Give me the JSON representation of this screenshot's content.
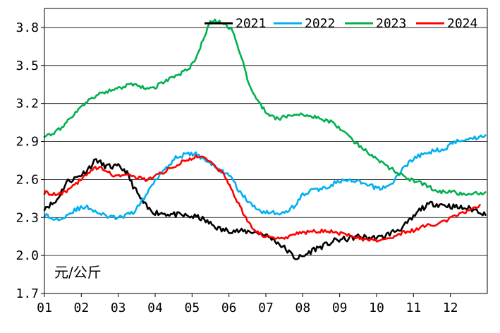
{
  "chart_data": {
    "type": "line",
    "title": "",
    "xlabel": "",
    "ylabel": "元/公斤",
    "ylim": [
      1.7,
      3.95
    ],
    "xlim": [
      1,
      13
    ],
    "grid": "horizontal",
    "legend_position": "top-right",
    "x_ticks": [
      {
        "label": "01",
        "value": 1
      },
      {
        "label": "02",
        "value": 2
      },
      {
        "label": "03",
        "value": 3
      },
      {
        "label": "04",
        "value": 4
      },
      {
        "label": "05",
        "value": 5
      },
      {
        "label": "06",
        "value": 6
      },
      {
        "label": "07",
        "value": 7
      },
      {
        "label": "08",
        "value": 8
      },
      {
        "label": "09",
        "value": 9
      },
      {
        "label": "10",
        "value": 10
      },
      {
        "label": "11",
        "value": 11
      },
      {
        "label": "12",
        "value": 12
      }
    ],
    "y_ticks": [
      {
        "label": "1.7",
        "value": 1.7
      },
      {
        "label": "2.0",
        "value": 2.0
      },
      {
        "label": "2.3",
        "value": 2.3
      },
      {
        "label": "2.6",
        "value": 2.6
      },
      {
        "label": "2.9",
        "value": 2.9
      },
      {
        "label": "3.2",
        "value": 3.2
      },
      {
        "label": "3.5",
        "value": 3.5
      },
      {
        "label": "3.8",
        "value": 3.8
      }
    ],
    "series": [
      {
        "name": "2021",
        "color": "#000000",
        "x": [
          1.0,
          1.3,
          1.6,
          1.9,
          2.1,
          2.3,
          2.4,
          2.6,
          2.8,
          3.0,
          3.2,
          3.4,
          3.6,
          3.8,
          4.0,
          4.3,
          4.6,
          4.9,
          5.2,
          5.5,
          5.8,
          6.0,
          6.3,
          6.6,
          6.9,
          7.2,
          7.5,
          7.8,
          8.0,
          8.3,
          8.6,
          8.9,
          9.2,
          9.5,
          9.8,
          10.1,
          10.4,
          10.7,
          11.0,
          11.2,
          11.5,
          11.8,
          12.0,
          12.2,
          12.5,
          12.8,
          12.95
        ],
        "y": [
          2.38,
          2.42,
          2.58,
          2.62,
          2.66,
          2.72,
          2.76,
          2.71,
          2.7,
          2.7,
          2.67,
          2.55,
          2.45,
          2.37,
          2.34,
          2.33,
          2.32,
          2.31,
          2.3,
          2.25,
          2.2,
          2.2,
          2.19,
          2.19,
          2.17,
          2.13,
          2.06,
          1.98,
          1.99,
          2.05,
          2.08,
          2.12,
          2.13,
          2.15,
          2.14,
          2.14,
          2.18,
          2.22,
          2.3,
          2.37,
          2.41,
          2.4,
          2.39,
          2.38,
          2.37,
          2.35,
          2.32
        ]
      },
      {
        "name": "2022",
        "color": "#00b0f0",
        "x": [
          1.0,
          1.3,
          1.6,
          1.9,
          2.2,
          2.5,
          2.8,
          3.1,
          3.4,
          3.7,
          4.0,
          4.3,
          4.6,
          4.9,
          5.1,
          5.4,
          5.7,
          6.0,
          6.3,
          6.6,
          6.9,
          7.2,
          7.5,
          7.8,
          8.0,
          8.3,
          8.6,
          8.9,
          9.2,
          9.5,
          9.8,
          10.1,
          10.4,
          10.7,
          11.0,
          11.3,
          11.6,
          11.9,
          12.1,
          12.4,
          12.7,
          12.95
        ],
        "y": [
          2.32,
          2.28,
          2.32,
          2.37,
          2.38,
          2.33,
          2.3,
          2.3,
          2.34,
          2.45,
          2.6,
          2.7,
          2.78,
          2.8,
          2.8,
          2.75,
          2.68,
          2.64,
          2.5,
          2.4,
          2.35,
          2.34,
          2.33,
          2.4,
          2.48,
          2.52,
          2.53,
          2.58,
          2.59,
          2.58,
          2.55,
          2.53,
          2.56,
          2.68,
          2.77,
          2.8,
          2.83,
          2.85,
          2.9,
          2.92,
          2.93,
          2.95
        ]
      },
      {
        "name": "2023",
        "color": "#00b050",
        "x": [
          1.0,
          1.3,
          1.6,
          1.8,
          2.0,
          2.2,
          2.5,
          2.8,
          3.1,
          3.4,
          3.7,
          4.0,
          4.3,
          4.6,
          4.9,
          5.1,
          5.3,
          5.5,
          5.7,
          5.9,
          6.1,
          6.3,
          6.5,
          6.7,
          6.9,
          7.1,
          7.3,
          7.6,
          7.9,
          8.2,
          8.5,
          8.8,
          9.1,
          9.4,
          9.7,
          10.0,
          10.3,
          10.6,
          10.9,
          11.2,
          11.5,
          11.8,
          12.1,
          12.4,
          12.7,
          12.95
        ],
        "y": [
          2.95,
          2.97,
          3.05,
          3.12,
          3.17,
          3.22,
          3.28,
          3.3,
          3.33,
          3.35,
          3.32,
          3.33,
          3.38,
          3.42,
          3.47,
          3.55,
          3.7,
          3.85,
          3.85,
          3.82,
          3.78,
          3.6,
          3.4,
          3.25,
          3.17,
          3.1,
          3.08,
          3.1,
          3.12,
          3.1,
          3.08,
          3.05,
          2.98,
          2.9,
          2.83,
          2.76,
          2.7,
          2.65,
          2.6,
          2.57,
          2.53,
          2.5,
          2.5,
          2.48,
          2.49,
          2.5
        ]
      },
      {
        "name": "2024",
        "color": "#ff0000",
        "x": [
          1.0,
          1.3,
          1.6,
          1.9,
          2.1,
          2.3,
          2.5,
          2.8,
          3.1,
          3.4,
          3.7,
          4.0,
          4.3,
          4.6,
          4.9,
          5.1,
          5.3,
          5.6,
          5.9,
          6.1,
          6.3,
          6.5,
          6.7,
          6.9,
          7.2,
          7.5,
          7.8,
          8.0,
          8.3,
          8.6,
          8.9,
          9.2,
          9.5,
          9.8,
          10.1,
          10.4,
          10.7,
          11.0,
          11.3,
          11.6,
          11.9,
          12.2,
          12.5,
          12.8
        ],
        "y": [
          2.5,
          2.48,
          2.5,
          2.58,
          2.63,
          2.68,
          2.7,
          2.64,
          2.63,
          2.63,
          2.6,
          2.62,
          2.67,
          2.72,
          2.76,
          2.78,
          2.77,
          2.72,
          2.62,
          2.5,
          2.38,
          2.28,
          2.2,
          2.16,
          2.13,
          2.14,
          2.17,
          2.18,
          2.19,
          2.2,
          2.18,
          2.16,
          2.14,
          2.12,
          2.12,
          2.14,
          2.18,
          2.2,
          2.23,
          2.25,
          2.28,
          2.32,
          2.36,
          2.4
        ]
      }
    ]
  }
}
